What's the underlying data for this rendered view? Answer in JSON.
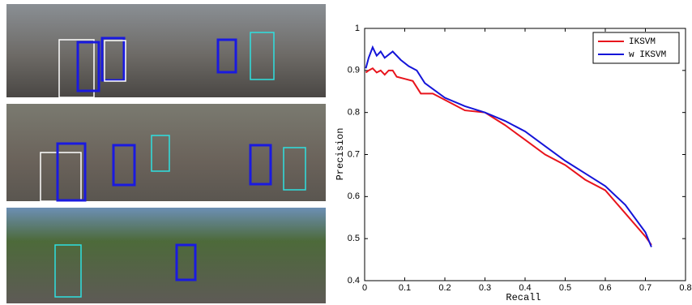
{
  "chart_data": {
    "type": "line",
    "xlabel": "Recall",
    "ylabel": "Precision",
    "xlim": [
      0,
      0.8
    ],
    "xticks": [
      0,
      0.1,
      0.2,
      0.3,
      0.4,
      0.5,
      0.6,
      0.7,
      0.8
    ],
    "ylim": [
      0.4,
      1
    ],
    "yticks": [
      0.4,
      0.5,
      0.6,
      0.7,
      0.8,
      0.9,
      1
    ],
    "legend": "upper right",
    "series": [
      {
        "name": "IKSVM",
        "color": "#e8141c",
        "x": [
          0.003,
          0.01,
          0.02,
          0.03,
          0.04,
          0.05,
          0.06,
          0.07,
          0.08,
          0.1,
          0.12,
          0.14,
          0.17,
          0.2,
          0.25,
          0.3,
          0.35,
          0.4,
          0.45,
          0.5,
          0.55,
          0.6,
          0.65,
          0.7,
          0.715
        ],
        "values": [
          0.895,
          0.9,
          0.905,
          0.895,
          0.9,
          0.89,
          0.9,
          0.9,
          0.885,
          0.88,
          0.875,
          0.845,
          0.845,
          0.83,
          0.805,
          0.8,
          0.77,
          0.735,
          0.7,
          0.675,
          0.64,
          0.615,
          0.56,
          0.505,
          0.485
        ]
      },
      {
        "name": "w IKSVM",
        "color": "#1414d8",
        "x": [
          0.003,
          0.01,
          0.02,
          0.03,
          0.04,
          0.05,
          0.07,
          0.09,
          0.11,
          0.13,
          0.15,
          0.2,
          0.25,
          0.3,
          0.35,
          0.4,
          0.45,
          0.5,
          0.55,
          0.6,
          0.65,
          0.7,
          0.715
        ],
        "values": [
          0.905,
          0.93,
          0.955,
          0.935,
          0.945,
          0.93,
          0.945,
          0.925,
          0.91,
          0.9,
          0.87,
          0.835,
          0.815,
          0.8,
          0.78,
          0.755,
          0.72,
          0.685,
          0.655,
          0.625,
          0.58,
          0.515,
          0.48
        ]
      }
    ]
  }
}
